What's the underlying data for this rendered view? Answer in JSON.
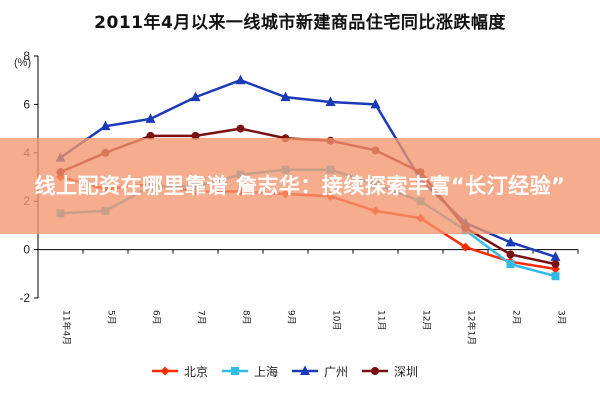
{
  "chart_data": {
    "type": "line",
    "title": "2011年4月以来一线城市新建商品住宅同比涨跌幅度",
    "unit": "(%)",
    "ylim": [
      -2,
      8
    ],
    "yticks": [
      "8",
      "6",
      "4",
      "2",
      "0",
      "-2"
    ],
    "categories": [
      "11年4月",
      "5月",
      "6月",
      "7月",
      "8月",
      "9月",
      "10月",
      "11月",
      "12月",
      "12年1月",
      "2月",
      "3月"
    ],
    "series": [
      {
        "name": "北京",
        "color": "#ff2a00",
        "marker": "diamond",
        "values": [
          3.0,
          2.5,
          2.7,
          2.4,
          2.4,
          2.3,
          2.2,
          1.6,
          1.3,
          0.1,
          -0.5,
          -0.8
        ]
      },
      {
        "name": "上海",
        "color": "#33bbe8",
        "marker": "square",
        "values": [
          1.5,
          1.6,
          2.6,
          2.6,
          3.1,
          3.3,
          3.3,
          2.7,
          2.0,
          0.8,
          -0.6,
          -1.1
        ]
      },
      {
        "name": "广州",
        "color": "#1a3ab8",
        "marker": "triangle",
        "values": [
          3.8,
          5.1,
          5.4,
          6.3,
          7.0,
          6.3,
          6.1,
          6.0,
          2.9,
          1.1,
          0.3,
          -0.3
        ]
      },
      {
        "name": "深圳",
        "color": "#7a1010",
        "marker": "circle",
        "values": [
          3.2,
          4.0,
          4.7,
          4.7,
          5.0,
          4.6,
          4.5,
          4.1,
          3.2,
          0.9,
          -0.2,
          -0.6
        ]
      }
    ],
    "grid": false,
    "legend_position": "bottom"
  },
  "overlay": {
    "text": "线上配资在哪里靠谱 詹志华：接续探索丰富“长汀经验”"
  }
}
